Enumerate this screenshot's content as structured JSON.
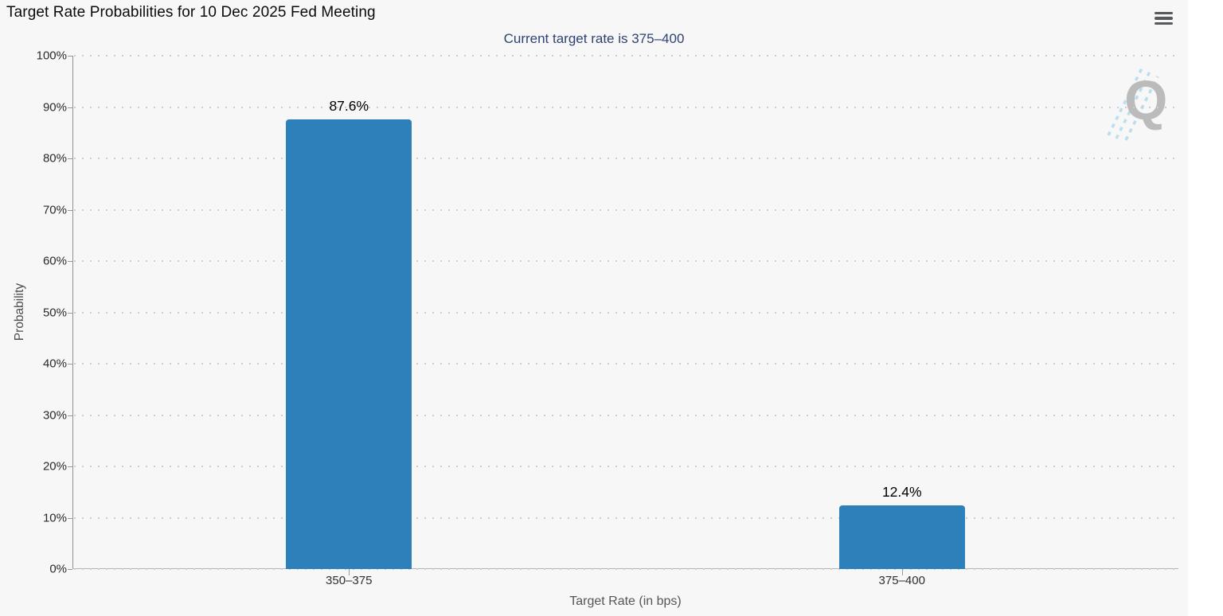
{
  "header": {
    "title": "Target Rate Probabilities for 10 Dec 2025 Fed Meeting",
    "subtitle": "Current target rate is 375–400",
    "menu_icon": "hamburger-icon"
  },
  "watermark": {
    "letter": "Q"
  },
  "colors": {
    "background": "#f7f7f7",
    "bar": "#2d80b9",
    "subtitle": "#2e4372",
    "grid": "#cdcdcd",
    "watermark_dashes": "#aed7ef"
  },
  "chart_data": {
    "type": "bar",
    "title": "Target Rate Probabilities for 10 Dec 2025 Fed Meeting",
    "subtitle": "Current target rate is 375–400",
    "categories": [
      "350–375",
      "375–400"
    ],
    "values": [
      87.6,
      12.4
    ],
    "value_labels": [
      "87.6%",
      "12.4%"
    ],
    "xlabel": "Target Rate (in bps)",
    "ylabel": "Probability",
    "ylim": [
      0,
      100
    ],
    "yticks": [
      0,
      10,
      20,
      30,
      40,
      50,
      60,
      70,
      80,
      90,
      100
    ],
    "ytick_labels": [
      "0%",
      "10%",
      "20%",
      "30%",
      "40%",
      "50%",
      "60%",
      "70%",
      "80%",
      "90%",
      "100%"
    ],
    "grid": "horizontal-dotted",
    "legend_position": "none",
    "bar_color": "#2d80b9"
  }
}
